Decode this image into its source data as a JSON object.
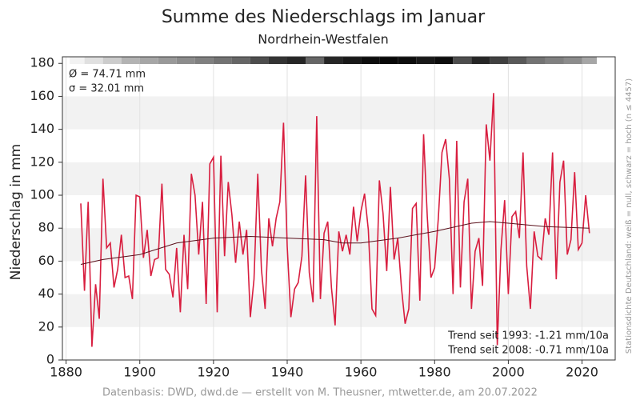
{
  "chart_data": {
    "type": "line",
    "title": "Summe des Niederschlags im Januar",
    "subtitle": "Nordrhein-Westfalen",
    "y_label": "Niederschlag in mm",
    "x": [
      1884,
      1885,
      1886,
      1887,
      1888,
      1889,
      1890,
      1891,
      1892,
      1893,
      1894,
      1895,
      1896,
      1897,
      1898,
      1899,
      1900,
      1901,
      1902,
      1903,
      1904,
      1905,
      1906,
      1907,
      1908,
      1909,
      1910,
      1911,
      1912,
      1913,
      1914,
      1915,
      1916,
      1917,
      1918,
      1919,
      1920,
      1921,
      1922,
      1923,
      1924,
      1925,
      1926,
      1927,
      1928,
      1929,
      1930,
      1931,
      1932,
      1933,
      1934,
      1935,
      1936,
      1937,
      1938,
      1939,
      1940,
      1941,
      1942,
      1943,
      1944,
      1945,
      1946,
      1947,
      1948,
      1949,
      1950,
      1951,
      1952,
      1953,
      1954,
      1955,
      1956,
      1957,
      1958,
      1959,
      1960,
      1961,
      1962,
      1963,
      1964,
      1965,
      1966,
      1967,
      1968,
      1969,
      1970,
      1971,
      1972,
      1973,
      1974,
      1975,
      1976,
      1977,
      1978,
      1979,
      1980,
      1981,
      1982,
      1983,
      1984,
      1985,
      1986,
      1987,
      1988,
      1989,
      1990,
      1991,
      1992,
      1993,
      1994,
      1995,
      1996,
      1997,
      1998,
      1999,
      2000,
      2001,
      2002,
      2003,
      2004,
      2005,
      2006,
      2007,
      2008,
      2009,
      2010,
      2011,
      2012,
      2013,
      2014,
      2015,
      2016,
      2017,
      2018,
      2019,
      2020,
      2021,
      2022
    ],
    "series": [
      {
        "name": "Niederschlag",
        "color": "#d81e3f",
        "values": [
          95,
          42,
          96,
          8,
          46,
          25,
          110,
          68,
          71,
          44,
          55,
          76,
          50,
          51,
          37,
          100,
          99,
          62,
          79,
          51,
          61,
          62,
          107,
          55,
          52,
          38,
          68,
          29,
          76,
          43,
          113,
          100,
          64,
          96,
          34,
          119,
          123,
          29,
          124,
          63,
          108,
          88,
          59,
          84,
          64,
          79,
          26,
          49,
          113,
          55,
          31,
          86,
          69,
          86,
          96,
          144,
          69,
          26,
          43,
          47,
          63,
          112,
          53,
          35,
          148,
          37,
          77,
          84,
          44,
          21,
          78,
          66,
          76,
          64,
          93,
          72,
          90,
          101,
          79,
          31,
          27,
          109,
          89,
          54,
          105,
          61,
          74,
          44,
          22,
          31,
          92,
          95,
          36,
          137,
          87,
          50,
          56,
          86,
          126,
          134,
          110,
          40,
          133,
          44,
          96,
          110,
          31,
          66,
          74,
          45,
          143,
          121,
          162,
          9,
          67,
          97,
          40,
          87,
          90,
          74,
          126,
          57,
          31,
          78,
          63,
          61,
          86,
          76,
          126,
          49,
          108,
          121,
          64,
          73,
          114,
          67,
          71,
          100,
          77
        ]
      },
      {
        "name": "Trend",
        "color": "#5a0f1a",
        "x": [
          1884,
          1890,
          1900,
          1910,
          1920,
          1930,
          1940,
          1950,
          1955,
          1960,
          1970,
          1980,
          1990,
          1995,
          2000,
          2010,
          2022
        ],
        "values": [
          58,
          61,
          64,
          71,
          74,
          75,
          74,
          73,
          71,
          71,
          74,
          78,
          83,
          84,
          83,
          81,
          80
        ]
      }
    ],
    "density_bins": [
      1881,
      1885,
      1890,
      1895,
      1900,
      1905,
      1910,
      1915,
      1920,
      1925,
      1930,
      1935,
      1940,
      1945,
      1950,
      1955,
      1960,
      1965,
      1970,
      1975,
      1980,
      1985,
      1990,
      1995,
      2000,
      2005,
      2010,
      2015,
      2020,
      2024
    ],
    "density": [
      0.05,
      0.12,
      0.2,
      0.3,
      0.35,
      0.4,
      0.45,
      0.5,
      0.55,
      0.6,
      0.7,
      0.8,
      0.85,
      0.6,
      0.85,
      0.9,
      0.95,
      0.97,
      0.95,
      0.9,
      0.95,
      0.7,
      0.85,
      0.75,
      0.65,
      0.55,
      0.5,
      0.45,
      0.35
    ],
    "density_note": "Stationsdichte Deutschland: weiß = null, schwarz = hoch (n ≤ 4457)",
    "annotations": [
      "Ø = 74.71 mm",
      "σ = 32.01 mm"
    ],
    "trend_notes": [
      "Trend seit 1993: -1.21 mm/10a",
      "Trend seit 2008: -0.71 mm/10a"
    ],
    "footer": "Datenbasis: DWD, dwd.de — erstellt von M. Theusner, mtwetter.de, am 20.07.2022",
    "xlim": [
      1879,
      2029
    ],
    "xticks": [
      1880,
      1900,
      1920,
      1940,
      1960,
      1980,
      2000,
      2020
    ],
    "ylim": [
      0,
      184
    ],
    "yticks": [
      0,
      20,
      40,
      60,
      80,
      100,
      120,
      140,
      160,
      180
    ],
    "grid": true
  }
}
